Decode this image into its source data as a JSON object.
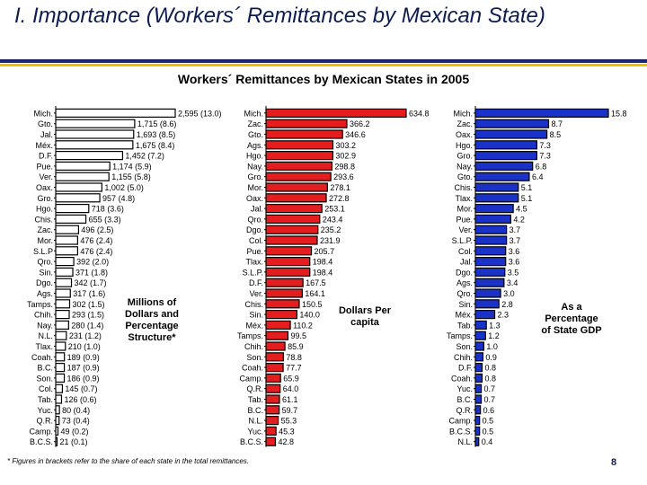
{
  "slide_title": "I. Importance (Workers´ Remittances by Mexican State)",
  "chart_title": "Workers´ Remittances by Mexican States in 2005",
  "footnote": "* Figures in brackets refer to the share of each state in the total remittances.",
  "page_number": "8",
  "colors": {
    "title": "#0d1d52",
    "rule_navy": "#1a2470",
    "rule_gold": "#e8c100",
    "panel1": "#ffffff",
    "panel2": "#e41e1e",
    "panel3": "#1a32c8"
  },
  "chart_data": [
    {
      "type": "bar",
      "orientation": "horizontal",
      "title": "Workers´ Remittances by Mexican States in 2005",
      "annotation": "Millions of Dollars and Percentage Structure*",
      "categories": [
        "Mich.",
        "Gto.",
        "Jal.",
        "Méx.",
        "D.F.",
        "Pue.",
        "Ver.",
        "Oax.",
        "Gro.",
        "Hgo.",
        "Chis.",
        "Zac.",
        "Mor.",
        "S.L.P",
        "Qro.",
        "Sin.",
        "Dgo.",
        "Ags.",
        "Tamps.",
        "Chih.",
        "Nay.",
        "N.L.",
        "Tlax.",
        "Coah.",
        "B.C.",
        "Son.",
        "Col.",
        "Tab.",
        "Yuc.",
        "Q.R.",
        "Camp.",
        "B.C.S."
      ],
      "values": [
        2595,
        1715,
        1693,
        1675,
        1452,
        1174,
        1155,
        1002,
        957,
        718,
        655,
        496,
        476,
        476,
        392,
        371,
        342,
        317,
        302,
        293,
        280,
        231,
        210,
        189,
        187,
        186,
        145,
        126,
        80,
        73,
        49,
        21
      ],
      "labels": [
        "2,595 (13.0)",
        "1,715 (8.6)",
        "1,693 (8.5)",
        "1,675 (8.4)",
        "1,452 (7.2)",
        "1,174 (5.9)",
        "1,155 (5.8)",
        "1,002 (5.0)",
        "957 (4.8)",
        "718 (3.6)",
        "655 (3.3)",
        "496 (2.5)",
        "476 (2.4)",
        "476 (2.4)",
        "392 (2.0)",
        "371 (1.8)",
        "342 (1.7)",
        "317 (1.6)",
        "302 (1.5)",
        "293 (1.5)",
        "280 (1.4)",
        "231 (1.2)",
        "210 (1.0)",
        "189 (0.9)",
        "187 (0.9)",
        "186 (0.9)",
        "145 (0.7)",
        "126 (0.6)",
        "80 (0.4)",
        "73 (0.4)",
        "49 (0.2)",
        "21 (0.1)"
      ],
      "xlim": [
        0,
        2595
      ]
    },
    {
      "type": "bar",
      "orientation": "horizontal",
      "annotation": "Dollars Per capita",
      "categories": [
        "Mich.",
        "Zac.",
        "Gto.",
        "Ags.",
        "Hgo.",
        "Nay.",
        "Gro.",
        "Mor.",
        "Oax.",
        "Jal.",
        "Qro.",
        "Dgo.",
        "Col.",
        "Pue.",
        "Tlax.",
        "S.L.P.",
        "D.F.",
        "Ver.",
        "Chis.",
        "Sin.",
        "Méx.",
        "Tamps.",
        "Chih.",
        "Son.",
        "Coah.",
        "Camp.",
        "Q.R.",
        "Tab.",
        "B.C.",
        "N.L.",
        "Yuc.",
        "B.C.S."
      ],
      "values": [
        634.8,
        366.2,
        346.6,
        303.2,
        302.9,
        298.8,
        293.6,
        278.1,
        272.8,
        253.1,
        243.4,
        235.2,
        231.9,
        205.7,
        198.4,
        198.4,
        167.5,
        164.1,
        150.5,
        140.0,
        110.2,
        99.5,
        85.9,
        78.8,
        77.7,
        65.9,
        64.0,
        61.1,
        59.7,
        55.3,
        45.3,
        42.8
      ],
      "labels": [
        "634.8",
        "366.2",
        "346.6",
        "303.2",
        "302.9",
        "298.8",
        "293.6",
        "278.1",
        "272.8",
        "253.1",
        "243.4",
        "235.2",
        "231.9",
        "205.7",
        "198.4",
        "198.4",
        "167.5",
        "164.1",
        "150.5",
        "140.0",
        "110.2",
        "99.5",
        "85.9",
        "78.8",
        "77.7",
        "65.9",
        "64.0",
        "61.1",
        "59.7",
        "55.3",
        "45.3",
        "42.8"
      ],
      "xlim": [
        0,
        634.8
      ]
    },
    {
      "type": "bar",
      "orientation": "horizontal",
      "annotation": "As a Percentage of State GDP",
      "categories": [
        "Mich.",
        "Zac.",
        "Oax.",
        "Hgo.",
        "Gro.",
        "Nay.",
        "Gto.",
        "Chis.",
        "Tlax.",
        "Mor.",
        "Pue.",
        "Ver.",
        "S.L.P.",
        "Col.",
        "Jal.",
        "Dgo.",
        "Ags.",
        "Qro.",
        "Sin.",
        "Méx.",
        "Tab.",
        "Tamps.",
        "Son.",
        "Chih.",
        "D.F.",
        "Coah.",
        "Yuc.",
        "B.C.",
        "Q.R.",
        "Camp.",
        "B.C.S.",
        "N.L."
      ],
      "values": [
        15.8,
        8.7,
        8.5,
        7.3,
        7.3,
        6.8,
        6.4,
        5.1,
        5.1,
        4.5,
        4.2,
        3.7,
        3.7,
        3.6,
        3.6,
        3.5,
        3.4,
        3.0,
        2.8,
        2.3,
        1.3,
        1.2,
        1.0,
        0.9,
        0.8,
        0.8,
        0.7,
        0.7,
        0.6,
        0.5,
        0.5,
        0.4
      ],
      "labels": [
        "15.8",
        "8.7",
        "8.5",
        "7.3",
        "7.3",
        "6.8",
        "6.4",
        "5.1",
        "5.1",
        "4.5",
        "4.2",
        "3.7",
        "3.7",
        "3.6",
        "3.6",
        "3.5",
        "3.4",
        "3.0",
        "2.8",
        "2.3",
        "1.3",
        "1.2",
        "1.0",
        "0.9",
        "0.8",
        "0.8",
        "0.7",
        "0.7",
        "0.6",
        "0.5",
        "0.5",
        "0.4"
      ],
      "xlim": [
        0,
        15.8
      ]
    }
  ]
}
